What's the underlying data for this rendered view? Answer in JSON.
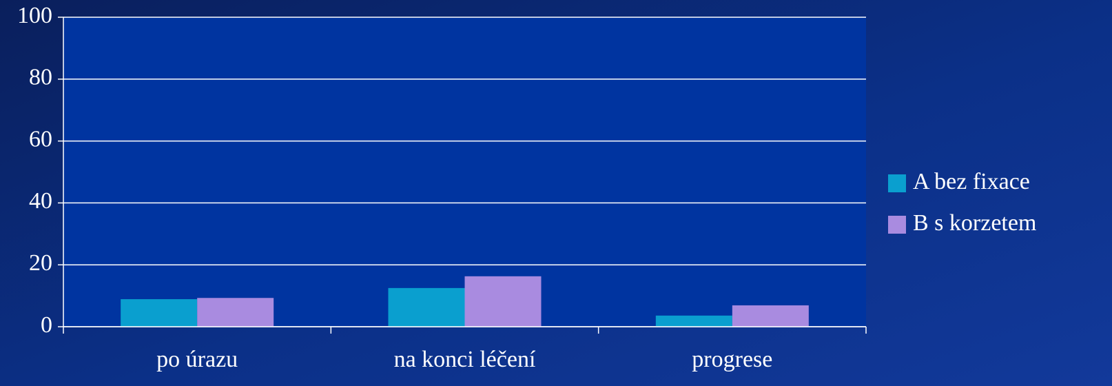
{
  "chart_data": {
    "type": "bar",
    "categories": [
      "po úrazu",
      "na konci léčení",
      "progrese"
    ],
    "series": [
      {
        "name": "A bez fixace",
        "color": "#0a9fcf",
        "values": [
          8.9,
          12.5,
          3.6
        ]
      },
      {
        "name": "B s korzetem",
        "color": "#a98be0",
        "values": [
          9.3,
          16.3,
          6.9
        ]
      }
    ],
    "ylim": [
      0,
      100
    ],
    "yticks": [
      0,
      20,
      40,
      60,
      80,
      100
    ],
    "grid": true,
    "legend": "right"
  }
}
